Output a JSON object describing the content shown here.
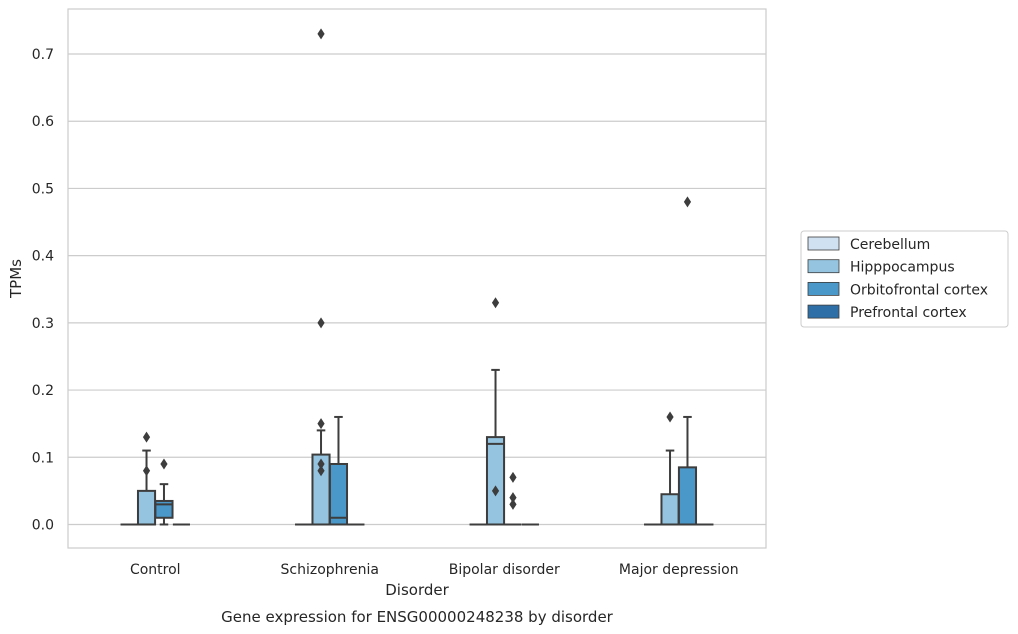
{
  "chart_data": {
    "type": "box",
    "caption": "Gene expression for ENSG00000248238 by disorder",
    "xlabel": "Disorder",
    "ylabel": "TPMs",
    "ylim": [
      -0.035,
      0.767
    ],
    "yticks": [
      0.0,
      0.1,
      0.2,
      0.3,
      0.4,
      0.5,
      0.6,
      0.7
    ],
    "ytick_labels": [
      "0.0",
      "0.1",
      "0.2",
      "0.3",
      "0.4",
      "0.5",
      "0.6",
      "0.7"
    ],
    "grid": "horizontal",
    "legend_position": "right",
    "categories": [
      "Control",
      "Schizophrenia",
      "Bipolar disorder",
      "Major depression"
    ],
    "series": [
      {
        "name": "Cerebellum",
        "color": "#d0e1f2",
        "boxes": [
          {
            "q1": 0,
            "median": 0,
            "q3": 0,
            "whisker_low": 0,
            "whisker_high": 0,
            "outliers": []
          },
          {
            "q1": 0,
            "median": 0,
            "q3": 0,
            "whisker_low": 0,
            "whisker_high": 0,
            "outliers": []
          },
          {
            "q1": 0,
            "median": 0,
            "q3": 0,
            "whisker_low": 0,
            "whisker_high": 0,
            "outliers": []
          },
          {
            "q1": 0,
            "median": 0,
            "q3": 0,
            "whisker_low": 0,
            "whisker_high": 0,
            "outliers": []
          }
        ]
      },
      {
        "name": "Hipppocampus",
        "color": "#94c4df",
        "boxes": [
          {
            "q1": 0,
            "median": 0,
            "q3": 0.05,
            "whisker_low": 0,
            "whisker_high": 0.11,
            "outliers": [
              0.08,
              0.13
            ]
          },
          {
            "q1": 0,
            "median": 0,
            "q3": 0.104,
            "whisker_low": 0,
            "whisker_high": 0.14,
            "outliers": [
              0.08,
              0.09,
              0.15,
              0.3,
              0.73
            ]
          },
          {
            "q1": 0,
            "median": 0.12,
            "q3": 0.13,
            "whisker_low": 0,
            "whisker_high": 0.23,
            "outliers": [
              0.05,
              0.33
            ]
          },
          {
            "q1": 0,
            "median": 0,
            "q3": 0.045,
            "whisker_low": 0,
            "whisker_high": 0.11,
            "outliers": [
              0.16
            ]
          }
        ]
      },
      {
        "name": "Orbitofrontal cortex",
        "color": "#4a98c9",
        "boxes": [
          {
            "q1": 0.01,
            "median": 0.03,
            "q3": 0.035,
            "whisker_low": 0,
            "whisker_high": 0.06,
            "outliers": [
              0.09
            ]
          },
          {
            "q1": 0,
            "median": 0.01,
            "q3": 0.09,
            "whisker_low": 0,
            "whisker_high": 0.16,
            "outliers": []
          },
          {
            "q1": 0,
            "median": 0,
            "q3": 0,
            "whisker_low": 0,
            "whisker_high": 0,
            "outliers": [
              0.03,
              0.04,
              0.07
            ]
          },
          {
            "q1": 0,
            "median": 0,
            "q3": 0.085,
            "whisker_low": 0,
            "whisker_high": 0.16,
            "outliers": [
              0.48
            ]
          }
        ]
      },
      {
        "name": "Prefrontal cortex",
        "color": "#2e6fa7",
        "boxes": [
          {
            "q1": 0,
            "median": 0,
            "q3": 0,
            "whisker_low": 0,
            "whisker_high": 0,
            "outliers": []
          },
          {
            "q1": 0,
            "median": 0,
            "q3": 0,
            "whisker_low": 0,
            "whisker_high": 0,
            "outliers": []
          },
          {
            "q1": 0,
            "median": 0,
            "q3": 0,
            "whisker_low": 0,
            "whisker_high": 0,
            "outliers": []
          },
          {
            "q1": 0,
            "median": 0,
            "q3": 0,
            "whisker_low": 0,
            "whisker_high": 0,
            "outliers": []
          }
        ]
      }
    ]
  }
}
